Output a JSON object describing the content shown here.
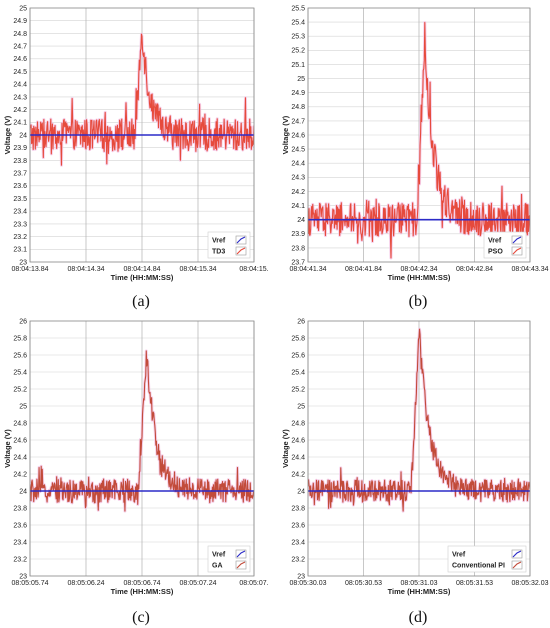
{
  "chart_data": [
    {
      "type": "line",
      "caption": "(a)",
      "xlabel": "Time (HH:MM:SS)",
      "ylabel": "Voltage (V)",
      "x_ticks": [
        "08:04:13.84",
        "08:04:14.34",
        "08:04:14.84",
        "08:04:15.34",
        "08:04:15."
      ],
      "xlim_s": [
        0,
        2
      ],
      "ylim": [
        23,
        25
      ],
      "y_ticks": [
        "23",
        "23.1",
        "23.2",
        "23.3",
        "23.4",
        "23.5",
        "23.6",
        "23.7",
        "23.8",
        "23.9",
        "24",
        "24.1",
        "24.2",
        "24.3",
        "24.4",
        "24.5",
        "24.6",
        "24.7",
        "24.8",
        "24.9",
        "25"
      ],
      "grid": true,
      "legend_position": "bottom-right",
      "series": [
        {
          "name": "Vref",
          "color": "#2b2bc8",
          "constant": 24
        },
        {
          "name": "TD3",
          "color": "#e64a3c",
          "baseline": 24,
          "noise": 0.13,
          "peak_time_s": 1.0,
          "peak_value": 24.85,
          "rise_s": 0.06,
          "decay_s": 0.16
        }
      ]
    },
    {
      "type": "line",
      "caption": "(b)",
      "xlabel": "Time (HH:MM:SS)",
      "ylabel": "Voltage (V)",
      "x_ticks": [
        "08:04:41.34",
        "08:04:41.84",
        "08:04:42.34",
        "08:04:42.84",
        "08:04:43.34"
      ],
      "xlim_s": [
        0,
        2
      ],
      "ylim": [
        23.7,
        25.5
      ],
      "y_ticks": [
        "23.7",
        "23.8",
        "23.9",
        "24",
        "24.1",
        "24.2",
        "24.3",
        "24.4",
        "24.5",
        "24.6",
        "24.7",
        "24.8",
        "24.9",
        "25",
        "25.1",
        "25.2",
        "25.3",
        "25.4",
        "25.5"
      ],
      "grid": true,
      "legend_position": "bottom-right",
      "series": [
        {
          "name": "Vref",
          "color": "#2b2bc8",
          "constant": 24
        },
        {
          "name": "PSO",
          "color": "#e64a3c",
          "baseline": 24,
          "noise": 0.12,
          "peak_time_s": 1.05,
          "peak_value": 25.25,
          "rise_s": 0.07,
          "decay_s": 0.2
        }
      ]
    },
    {
      "type": "line",
      "caption": "(c)",
      "xlabel": "Time (HH:MM:SS)",
      "ylabel": "Voltage (V)",
      "x_ticks": [
        "08:05:05.74",
        "08:05:06.24",
        "08:05:06.74",
        "08:05:07.24",
        "08:05:07."
      ],
      "xlim_s": [
        0,
        2
      ],
      "ylim": [
        23,
        26
      ],
      "y_ticks": [
        "23",
        "23.2",
        "23.4",
        "23.6",
        "23.8",
        "24",
        "24.2",
        "24.4",
        "24.6",
        "24.8",
        "25",
        "25.2",
        "25.4",
        "25.6",
        "25.8",
        "26"
      ],
      "grid": true,
      "legend_position": "bottom-right",
      "series": [
        {
          "name": "Vref",
          "color": "#2b2bc8",
          "constant": 24
        },
        {
          "name": "GA",
          "color": "#c24b3a",
          "baseline": 24,
          "noise": 0.14,
          "peak_time_s": 1.04,
          "peak_value": 25.65,
          "rise_s": 0.07,
          "decay_s": 0.2
        }
      ]
    },
    {
      "type": "line",
      "caption": "(d)",
      "xlabel": "Time (HH:MM:SS)",
      "ylabel": "Voltage (V)",
      "x_ticks": [
        "08:05:30.03",
        "08:05:30.53",
        "08:05:31.03",
        "08:05:31.53",
        "08:05:32.03"
      ],
      "xlim_s": [
        0,
        2
      ],
      "ylim": [
        23,
        26
      ],
      "y_ticks": [
        "23",
        "23.2",
        "23.4",
        "23.6",
        "23.8",
        "24",
        "24.2",
        "24.4",
        "24.6",
        "24.8",
        "25",
        "25.2",
        "25.4",
        "25.6",
        "25.8",
        "26"
      ],
      "grid": true,
      "legend_position": "bottom-right",
      "series": [
        {
          "name": "Vref",
          "color": "#2b2bc8",
          "constant": 24
        },
        {
          "name": "Conventional PI",
          "color": "#c24b3a",
          "baseline": 24,
          "noise": 0.13,
          "peak_time_s": 1.0,
          "peak_value": 25.9,
          "rise_s": 0.07,
          "decay_s": 0.22
        }
      ]
    }
  ]
}
